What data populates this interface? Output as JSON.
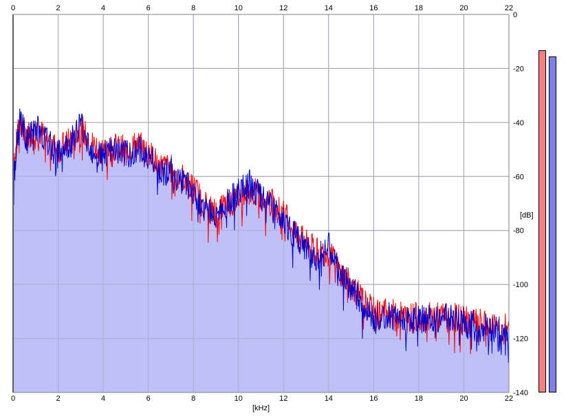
{
  "chart_data": {
    "type": "line",
    "xlabel": "[kHz]",
    "ylabel": "[dB]",
    "xlim": [
      0,
      22
    ],
    "ylim": [
      -140,
      0
    ],
    "x_ticks": [
      0,
      2,
      4,
      6,
      8,
      10,
      12,
      14,
      16,
      18,
      20,
      22
    ],
    "y_ticks": [
      0,
      -20,
      -40,
      -60,
      -80,
      -100,
      -120,
      -140
    ],
    "y_tick_labels": [
      "0",
      "-20",
      "-40",
      "-60",
      "-80",
      "-100",
      "-120",
      "-140"
    ],
    "grid": true,
    "series": [
      {
        "color": "#ff0000",
        "x": [
          0,
          0.3,
          0.6,
          1.0,
          1.5,
          2.0,
          2.5,
          3.0,
          3.5,
          4.0,
          4.5,
          5.0,
          5.5,
          6.0,
          6.5,
          7.0,
          7.5,
          8.0,
          8.5,
          9.0,
          9.5,
          10.0,
          10.5,
          11.0,
          11.5,
          12.0,
          12.5,
          13.0,
          13.5,
          14.0,
          14.5,
          15.0,
          15.5,
          16.0,
          16.5,
          17.0,
          17.5,
          18.0,
          18.5,
          19.0,
          19.5,
          20.0,
          20.5,
          21.0,
          21.5,
          22.0
        ],
        "y": [
          -55,
          -40,
          -45,
          -42,
          -46,
          -50,
          -47,
          -42,
          -48,
          -50,
          -49,
          -50,
          -48,
          -51,
          -56,
          -57,
          -60,
          -64,
          -70,
          -73,
          -70,
          -68,
          -65,
          -67,
          -70,
          -74,
          -80,
          -85,
          -88,
          -88,
          -95,
          -100,
          -106,
          -110,
          -110,
          -111,
          -112,
          -112,
          -112,
          -112,
          -112,
          -113,
          -114,
          -115,
          -116,
          -116
        ]
      },
      {
        "color": "#0000cc",
        "x": [
          0,
          0.3,
          0.6,
          1.0,
          1.5,
          2.0,
          2.5,
          3.0,
          3.5,
          4.0,
          4.5,
          5.0,
          5.5,
          6.0,
          6.5,
          7.0,
          7.5,
          8.0,
          8.5,
          9.0,
          9.5,
          10.0,
          10.5,
          11.0,
          11.5,
          12.0,
          12.5,
          13.0,
          13.5,
          14.0,
          14.5,
          15.0,
          15.5,
          16.0,
          16.5,
          17.0,
          17.5,
          18.0,
          18.5,
          19.0,
          19.5,
          20.0,
          20.5,
          21.0,
          21.5,
          22.0
        ],
        "y": [
          -62,
          -38,
          -47,
          -41,
          -47,
          -52,
          -48,
          -40,
          -50,
          -52,
          -50,
          -52,
          -50,
          -52,
          -58,
          -58,
          -62,
          -66,
          -72,
          -74,
          -70,
          -66,
          -63,
          -68,
          -72,
          -76,
          -82,
          -87,
          -90,
          -86,
          -96,
          -101,
          -108,
          -112,
          -111,
          -112,
          -113,
          -113,
          -113,
          -112,
          -113,
          -114,
          -115,
          -116,
          -117,
          -118
        ]
      }
    ]
  },
  "meters": {
    "left": {
      "color": "#f28080",
      "level": 0.872
    },
    "right": {
      "color": "#7f7fe8",
      "level": 0.857
    }
  }
}
